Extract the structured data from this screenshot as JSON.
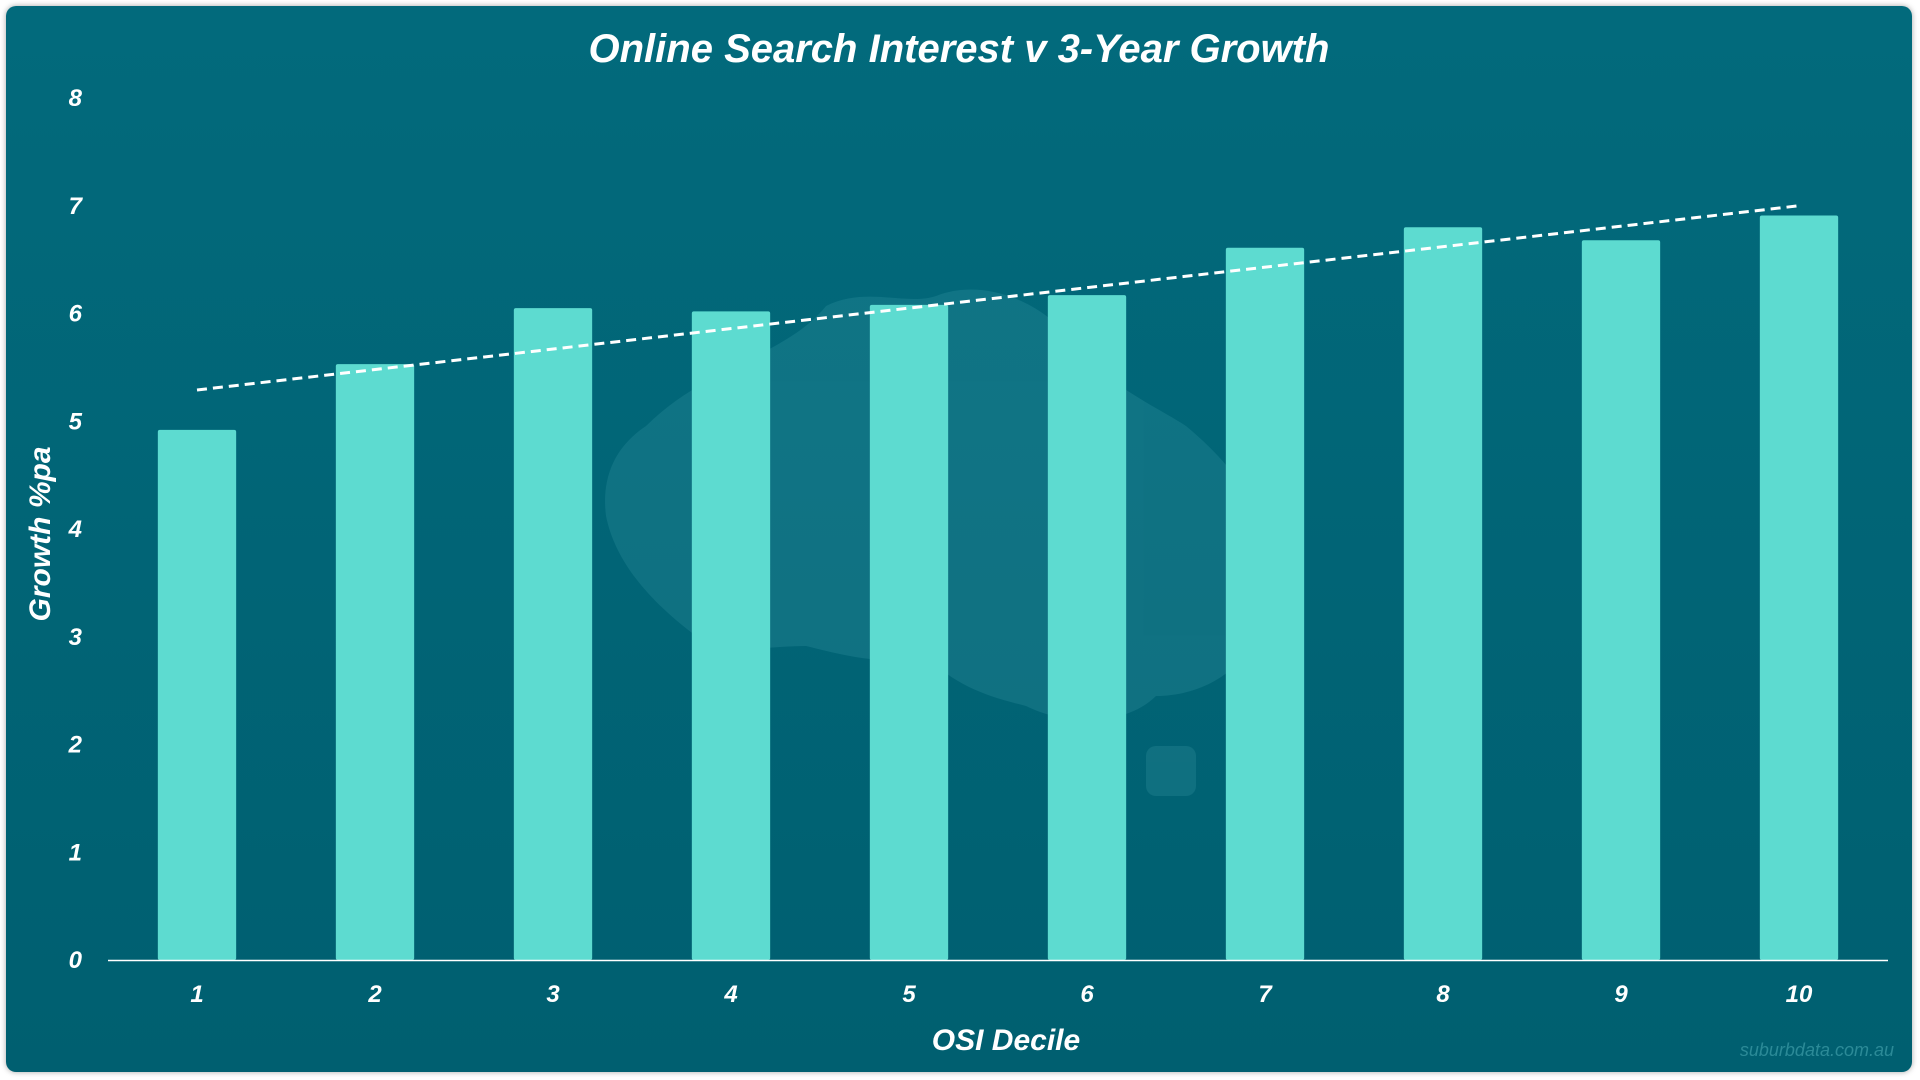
{
  "chart_data": {
    "type": "bar",
    "title": "Online Search Interest v 3-Year Growth",
    "xlabel": "OSI Decile",
    "ylabel": "Growth %pa",
    "categories": [
      "1",
      "2",
      "3",
      "4",
      "5",
      "6",
      "7",
      "8",
      "9",
      "10"
    ],
    "values": [
      4.92,
      5.53,
      6.05,
      6.02,
      6.08,
      6.17,
      6.61,
      6.8,
      6.68,
      6.91
    ],
    "ylim": [
      0,
      8
    ],
    "yticks": [
      "0",
      "1",
      "2",
      "3",
      "4",
      "5",
      "6",
      "7",
      "8"
    ],
    "grid": false,
    "legend": "none",
    "trendline": {
      "type": "linear",
      "style": "dashed",
      "start": 5.29,
      "end": 7.0
    },
    "bar_color": "#5ddbd0",
    "background_color": "#026a7c",
    "trendline_color": "#ffffff",
    "watermark": "suburbdata.com.au"
  }
}
